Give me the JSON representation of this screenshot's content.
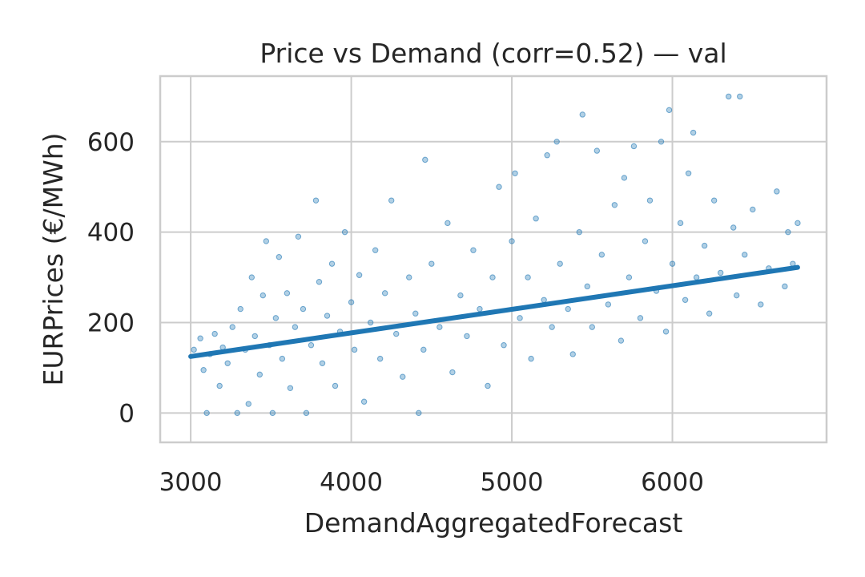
{
  "chart_data": {
    "type": "scatter",
    "title": "Price vs Demand (corr=0.52) — val",
    "xlabel": "DemandAggregatedForecast",
    "ylabel": "EURPrices (€/MWh)",
    "xlim": [
      2810,
      6960
    ],
    "ylim": [
      -65,
      745
    ],
    "xticks": [
      3000,
      4000,
      5000,
      6000
    ],
    "yticks": [
      0,
      200,
      400,
      600
    ],
    "grid": true,
    "colors": {
      "point": "#1f77b4",
      "line": "#1f77b4",
      "grid": "#cccccc",
      "frame": "#cccccc"
    },
    "trend_line": {
      "x": [
        3000,
        6780
      ],
      "y": [
        125,
        322
      ]
    },
    "points": [
      [
        3020,
        140
      ],
      [
        3060,
        165
      ],
      [
        3080,
        95
      ],
      [
        3100,
        0
      ],
      [
        3120,
        130
      ],
      [
        3150,
        175
      ],
      [
        3180,
        60
      ],
      [
        3200,
        145
      ],
      [
        3230,
        110
      ],
      [
        3260,
        190
      ],
      [
        3290,
        0
      ],
      [
        3310,
        230
      ],
      [
        3340,
        140
      ],
      [
        3360,
        20
      ],
      [
        3380,
        300
      ],
      [
        3400,
        170
      ],
      [
        3430,
        85
      ],
      [
        3450,
        260
      ],
      [
        3470,
        380
      ],
      [
        3490,
        150
      ],
      [
        3510,
        0
      ],
      [
        3530,
        210
      ],
      [
        3550,
        345
      ],
      [
        3570,
        120
      ],
      [
        3600,
        265
      ],
      [
        3620,
        55
      ],
      [
        3650,
        190
      ],
      [
        3670,
        390
      ],
      [
        3700,
        230
      ],
      [
        3720,
        0
      ],
      [
        3750,
        150
      ],
      [
        3780,
        470
      ],
      [
        3800,
        290
      ],
      [
        3820,
        110
      ],
      [
        3850,
        215
      ],
      [
        3880,
        330
      ],
      [
        3900,
        60
      ],
      [
        3930,
        180
      ],
      [
        3960,
        400
      ],
      [
        4000,
        245
      ],
      [
        4020,
        140
      ],
      [
        4050,
        305
      ],
      [
        4080,
        25
      ],
      [
        4120,
        200
      ],
      [
        4150,
        360
      ],
      [
        4180,
        120
      ],
      [
        4210,
        265
      ],
      [
        4250,
        470
      ],
      [
        4280,
        175
      ],
      [
        4320,
        80
      ],
      [
        4360,
        300
      ],
      [
        4400,
        220
      ],
      [
        4420,
        0
      ],
      [
        4450,
        140
      ],
      [
        4460,
        560
      ],
      [
        4500,
        330
      ],
      [
        4550,
        190
      ],
      [
        4600,
        420
      ],
      [
        4630,
        90
      ],
      [
        4680,
        260
      ],
      [
        4720,
        170
      ],
      [
        4760,
        360
      ],
      [
        4800,
        230
      ],
      [
        4850,
        60
      ],
      [
        4880,
        300
      ],
      [
        4920,
        500
      ],
      [
        4950,
        150
      ],
      [
        5000,
        380
      ],
      [
        5020,
        530
      ],
      [
        5050,
        210
      ],
      [
        5100,
        300
      ],
      [
        5120,
        120
      ],
      [
        5150,
        430
      ],
      [
        5200,
        250
      ],
      [
        5220,
        570
      ],
      [
        5250,
        190
      ],
      [
        5280,
        600
      ],
      [
        5300,
        330
      ],
      [
        5350,
        230
      ],
      [
        5380,
        130
      ],
      [
        5420,
        400
      ],
      [
        5440,
        660
      ],
      [
        5470,
        280
      ],
      [
        5500,
        190
      ],
      [
        5530,
        580
      ],
      [
        5560,
        350
      ],
      [
        5600,
        240
      ],
      [
        5640,
        460
      ],
      [
        5680,
        160
      ],
      [
        5700,
        520
      ],
      [
        5730,
        300
      ],
      [
        5760,
        590
      ],
      [
        5800,
        210
      ],
      [
        5830,
        380
      ],
      [
        5860,
        470
      ],
      [
        5900,
        270
      ],
      [
        5930,
        600
      ],
      [
        5960,
        180
      ],
      [
        5980,
        670
      ],
      [
        6000,
        330
      ],
      [
        6050,
        420
      ],
      [
        6080,
        250
      ],
      [
        6100,
        530
      ],
      [
        6130,
        620
      ],
      [
        6150,
        300
      ],
      [
        6200,
        370
      ],
      [
        6230,
        220
      ],
      [
        6260,
        470
      ],
      [
        6300,
        310
      ],
      [
        6350,
        700
      ],
      [
        6380,
        410
      ],
      [
        6400,
        260
      ],
      [
        6420,
        700
      ],
      [
        6450,
        350
      ],
      [
        6500,
        450
      ],
      [
        6550,
        240
      ],
      [
        6600,
        320
      ],
      [
        6650,
        490
      ],
      [
        6700,
        280
      ],
      [
        6720,
        400
      ],
      [
        6750,
        330
      ],
      [
        6780,
        420
      ]
    ]
  }
}
